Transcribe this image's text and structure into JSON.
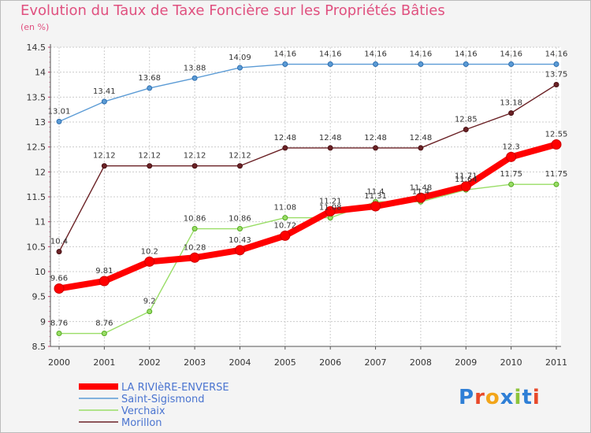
{
  "title": "Evolution du Taux de Taxe Foncière sur les Propriétés Bâties",
  "subtitle": "(en %)",
  "brand": "Proxiti",
  "colors": {
    "background": "#f4f4f4",
    "title": "#e0507f",
    "grid": "#cccccc",
    "legend_text": "#4a74d0"
  },
  "chart_data": {
    "type": "line",
    "x": [
      "2000",
      "2001",
      "2002",
      "2003",
      "2004",
      "2005",
      "2006",
      "2007",
      "2008",
      "2009",
      "2010",
      "2011"
    ],
    "ylim": [
      8.5,
      14.5
    ],
    "yticks": [
      "8.5",
      "9",
      "9.5",
      "10",
      "10.5",
      "11",
      "11.5",
      "12",
      "12.5",
      "13",
      "13.5",
      "14",
      "14.5"
    ],
    "grid": true,
    "legend_position": "bottom-left",
    "series": [
      {
        "name": "Saint-Sigismond",
        "color": "#5b9bd5",
        "values": [
          13.01,
          13.41,
          13.68,
          13.88,
          14.09,
          14.16,
          14.16,
          14.16,
          14.16,
          14.16,
          14.16,
          14.16
        ],
        "labels": [
          "13.01",
          "13.41",
          "13.68",
          "13.88",
          "14.09",
          "14.16",
          "14.16",
          "14.16",
          "14.16",
          "14.16",
          "14.16",
          "14.16"
        ]
      },
      {
        "name": "Morillon",
        "color": "#6b2226",
        "values": [
          10.4,
          12.12,
          12.12,
          12.12,
          12.12,
          12.48,
          12.48,
          12.48,
          12.48,
          12.85,
          13.18,
          13.75
        ],
        "labels": [
          "10.4",
          "12.12",
          "12.12",
          "12.12",
          "12.12",
          "12.48",
          "12.48",
          "12.48",
          "12.48",
          "12.85",
          "13.18",
          "13.75"
        ]
      },
      {
        "name": "Verchaix",
        "color": "#99dd66",
        "values": [
          8.76,
          8.76,
          9.2,
          10.86,
          10.86,
          11.08,
          11.08,
          11.4,
          11.4,
          11.64,
          11.75,
          11.75
        ],
        "labels": [
          "8.76",
          "8.76",
          "9.2",
          "10.86",
          "10.86",
          "11.08",
          "11.08",
          "11.4",
          "11.4",
          "11.64",
          "11.75",
          "11.75"
        ]
      },
      {
        "name": "LA RIVIèRE-ENVERSE",
        "color": "#ff0000",
        "values": [
          9.66,
          9.81,
          10.2,
          10.28,
          10.43,
          10.72,
          11.21,
          11.31,
          11.48,
          11.71,
          12.3,
          12.55
        ],
        "labels": [
          "9.66",
          "9.81",
          "10.2",
          "10.28",
          "10.43",
          "10.72",
          "11.21",
          "11.31",
          "11.48",
          "11.71",
          "12.3",
          "12.55"
        ]
      }
    ],
    "legend_order": [
      "LA RIVIèRE-ENVERSE",
      "Saint-Sigismond",
      "Verchaix",
      "Morillon"
    ]
  }
}
